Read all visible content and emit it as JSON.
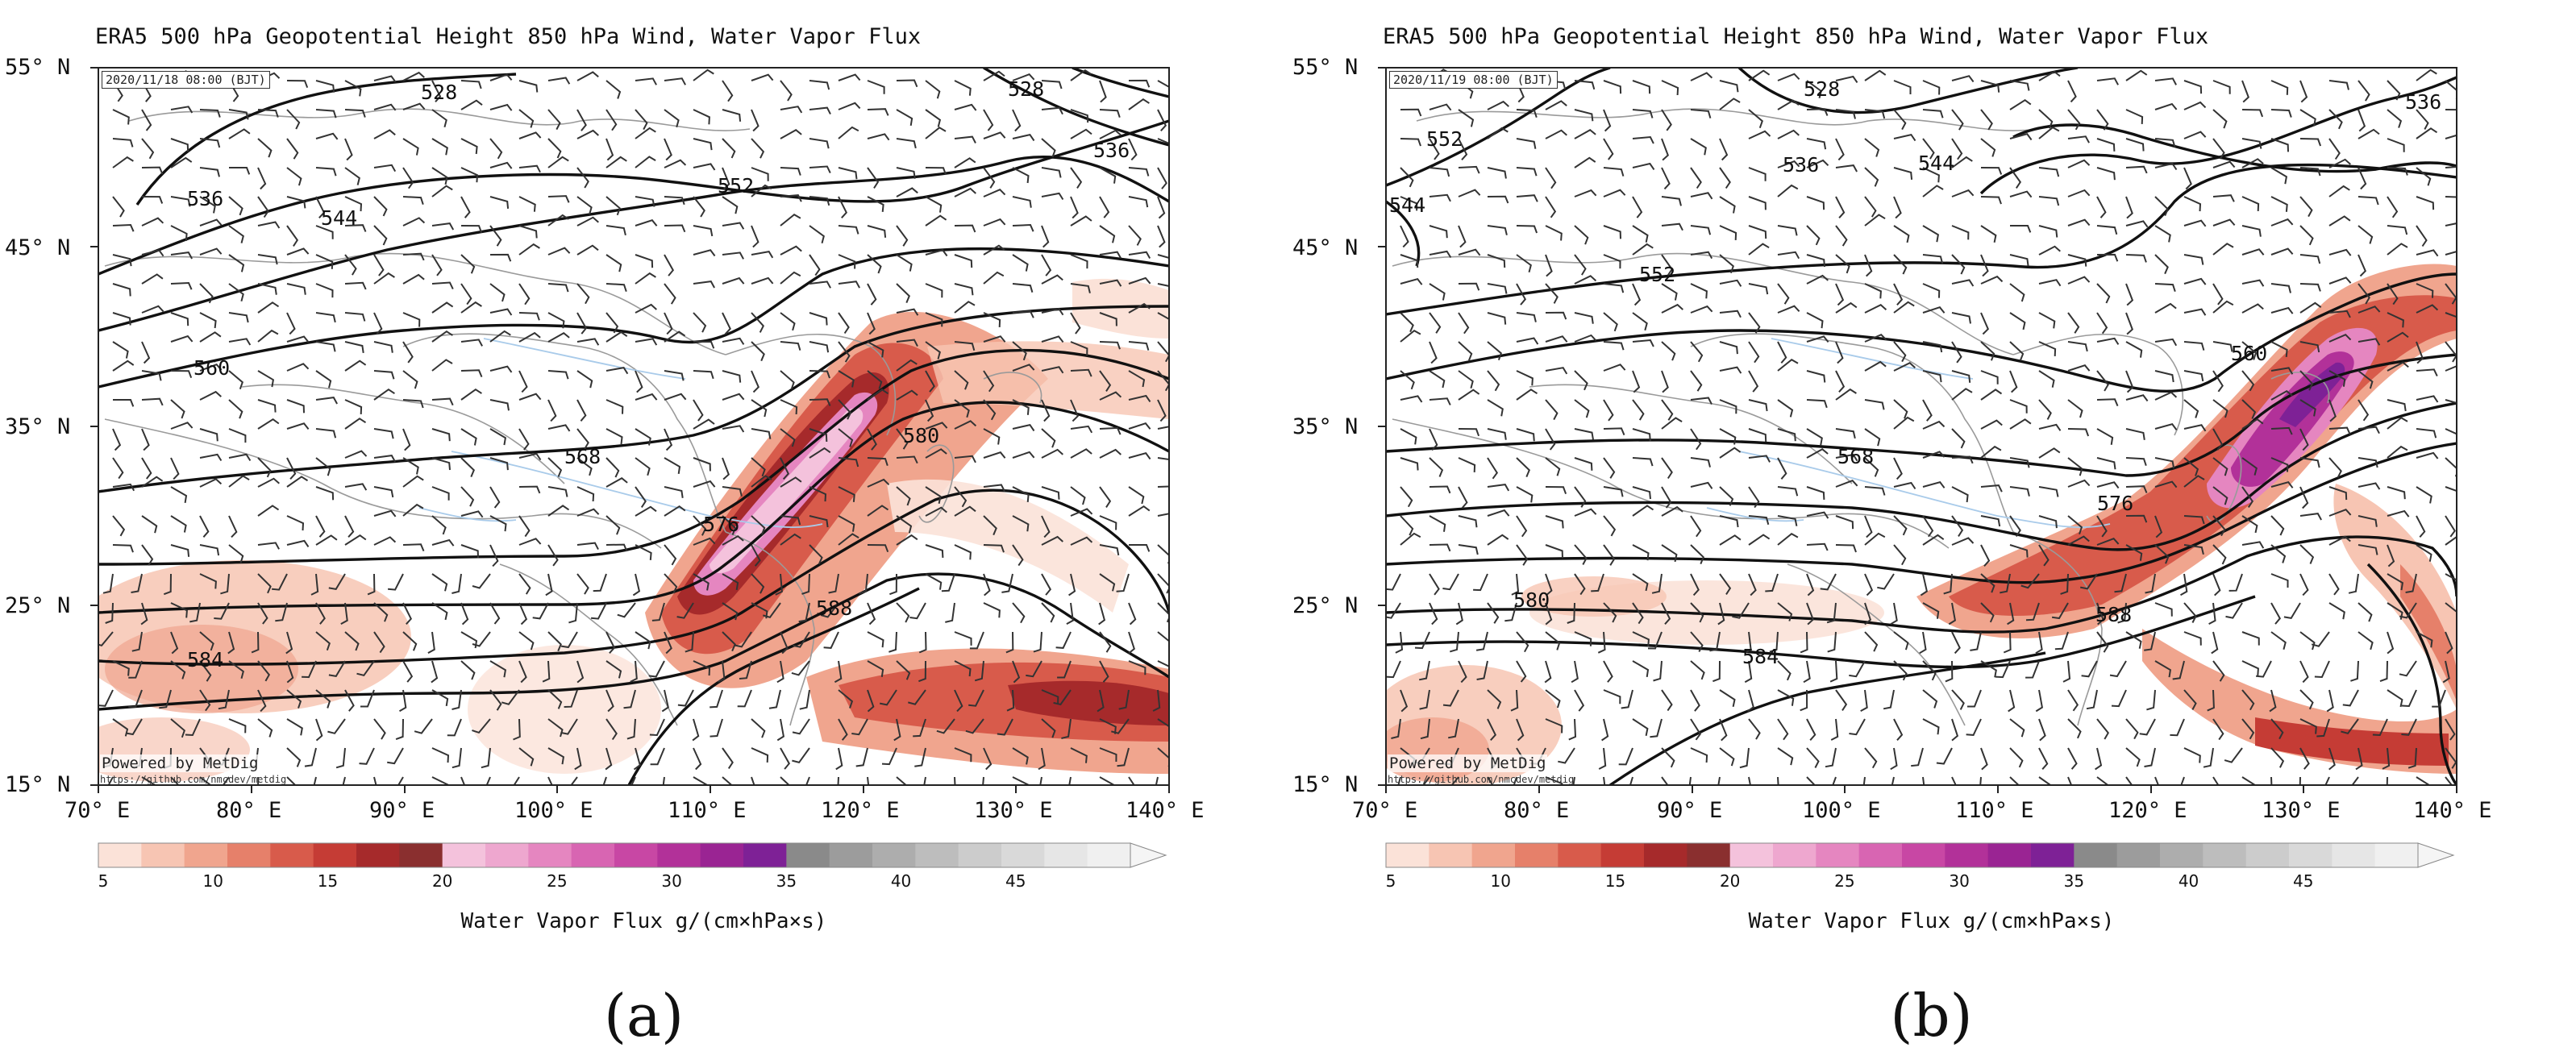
{
  "panels": [
    {
      "id": "a",
      "title": "ERA5 500 hPa Geopotential Height 850 hPa Wind, Water Vapor Flux",
      "timestamp": "2020/11/18 08:00 (BJT)",
      "powered_by": "Powered by MetDig",
      "powered_url": "https://github.com/nmcdev/metdig",
      "panel_label": "(a)",
      "contour_labels": [
        "528",
        "544",
        "536",
        "552",
        "560",
        "568",
        "576",
        "580",
        "584",
        "588",
        "536",
        "528"
      ],
      "colorbar_title": "Water Vapor Flux g/(cm×hPa×s)"
    },
    {
      "id": "b",
      "title": "ERA5 500 hPa Geopotential Height 850 hPa Wind, Water Vapor Flux",
      "timestamp": "2020/11/19 08:00 (BJT)",
      "powered_by": "Powered by MetDig",
      "powered_url": "https://github.com/nmcdev/metdig",
      "panel_label": "(b)",
      "contour_labels": [
        "552",
        "528",
        "536",
        "544",
        "544",
        "552",
        "560",
        "568",
        "576",
        "580",
        "584",
        "588",
        "536"
      ],
      "colorbar_title": "Water Vapor Flux g/(cm×hPa×s)"
    }
  ],
  "axes": {
    "lat_ticks": [
      "55° N",
      "45° N",
      "35° N",
      "25° N",
      "15° N"
    ],
    "lon_ticks": [
      "70° E",
      "80° E",
      "90° E",
      "100° E",
      "110° E",
      "120° E",
      "130° E",
      "140° E"
    ]
  },
  "colorbar": {
    "ticks": [
      "5",
      "10",
      "15",
      "20",
      "25",
      "30",
      "35",
      "40",
      "45"
    ],
    "colors": [
      "#fbe2d8",
      "#f7c5b3",
      "#f0a58e",
      "#e6806a",
      "#d85b4b",
      "#c53c35",
      "#a62a2b",
      "#8a2f2f",
      "#f4c2dc",
      "#eea7cf",
      "#e586c0",
      "#d865b2",
      "#c847a4",
      "#b23199",
      "#9a2493",
      "#7e2196",
      "#8a8a8a",
      "#9c9c9c",
      "#adadad",
      "#bdbdbd",
      "#cccccc",
      "#d9d9d9",
      "#e6e6e6",
      "#f0f0f0"
    ]
  }
}
